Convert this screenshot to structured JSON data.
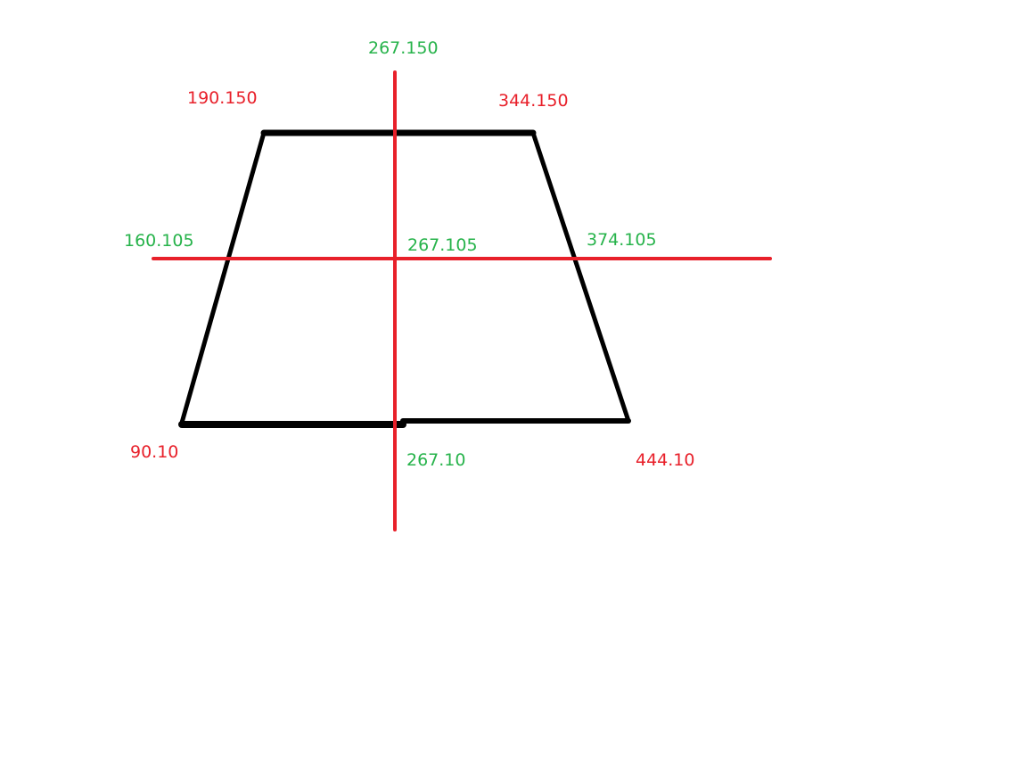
{
  "colors": {
    "shape": "#000000",
    "guides": "#e8202a",
    "corner_label": "#e8202a",
    "axis_label": "#27b34b",
    "background": "#ffffff"
  },
  "labels": {
    "top_left": "190.150",
    "top_right": "344.150",
    "bottom_left": "90.10",
    "bottom_right": "444.10",
    "axis_top": "267.150",
    "axis_left": "160.105",
    "axis_center": "267.105",
    "axis_right": "374.105",
    "axis_bottom": "267.10"
  }
}
